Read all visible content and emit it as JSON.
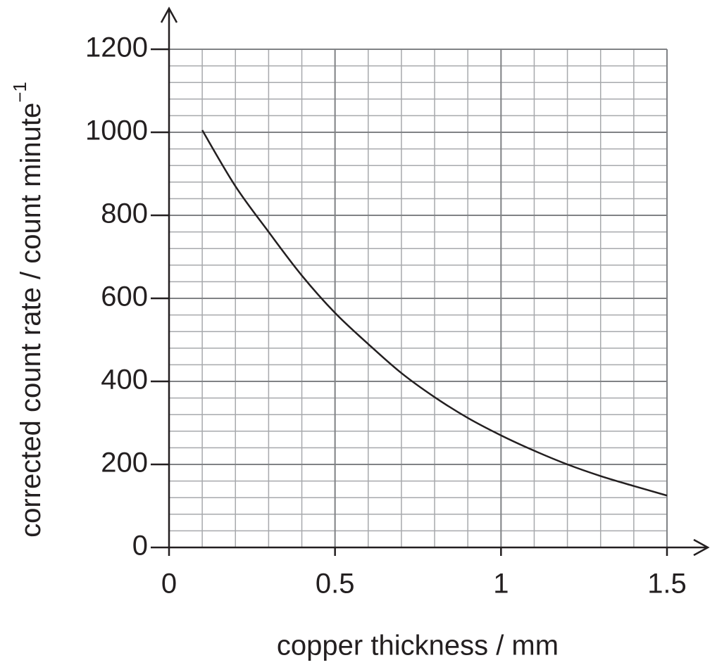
{
  "chart_data": {
    "type": "line",
    "x_label": "copper thickness / mm",
    "y_label": "corrected count rate / count minute",
    "y_label_sup": "−1",
    "x": [
      0.1,
      0.2,
      0.3,
      0.4,
      0.5,
      0.6,
      0.7,
      0.8,
      0.9,
      1.0,
      1.1,
      1.2,
      1.3,
      1.4,
      1.5
    ],
    "values": [
      1005,
      870,
      760,
      655,
      565,
      490,
      420,
      362,
      312,
      270,
      233,
      200,
      172,
      148,
      125
    ],
    "color": "#231f20",
    "xlim": [
      0,
      1.5
    ],
    "ylim": [
      0,
      1200
    ],
    "xticks": [
      0,
      0.5,
      1,
      1.5
    ],
    "yticks": [
      0,
      200,
      400,
      600,
      800,
      1000,
      1200
    ],
    "grid": true,
    "minor_grid": {
      "x_step": 0.1,
      "y_step": 40
    }
  }
}
